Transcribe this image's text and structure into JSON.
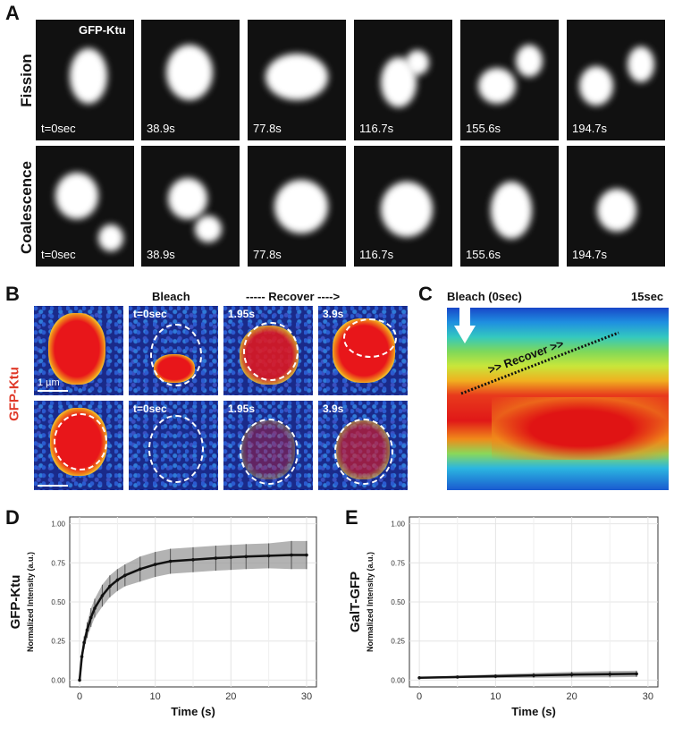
{
  "panel_a": {
    "label": "A",
    "tag": "GFP-Ktu",
    "rows": [
      {
        "name": "Fission",
        "times": [
          "t=0sec",
          "38.9s",
          "77.8s",
          "116.7s",
          "155.6s",
          "194.7s"
        ]
      },
      {
        "name": "Coalescence",
        "times": [
          "t=0sec",
          "38.9s",
          "77.8s",
          "116.7s",
          "155.6s",
          "194.7s"
        ]
      }
    ]
  },
  "panel_b": {
    "label": "B",
    "side_label": "GFP-Ktu",
    "col_headers": {
      "bleach": "Bleach",
      "recover": "----- Recover ---->"
    },
    "scale_label": "1 µm",
    "row1_times": [
      "t=0sec",
      "1.95s",
      "3.9s"
    ],
    "row2_times": [
      "t=0sec",
      "1.95s",
      "3.9s"
    ]
  },
  "panel_c": {
    "label": "C",
    "bleach": "Bleach (0sec)",
    "end_time": "15sec",
    "recover": ">> Recover >>"
  },
  "panel_d": {
    "label": "D"
  },
  "panel_e": {
    "label": "E"
  },
  "chart_data": [
    {
      "type": "line",
      "panel": "D",
      "ylabel_main": "GFP-Ktu",
      "ylabel_sub": "Normalized Intensity (a.u.)",
      "xlabel": "Time (s)",
      "xlim": [
        0,
        30
      ],
      "ylim": [
        0,
        1
      ],
      "xticks": [
        "0",
        "10",
        "20",
        "30"
      ],
      "yticks": [
        "0.00",
        "0.25",
        "0.50",
        "0.75",
        "1.00"
      ],
      "x": [
        0,
        0.3,
        0.6,
        1,
        1.5,
        2,
        3,
        4,
        5,
        6,
        8,
        10,
        12,
        15,
        18,
        20,
        22,
        25,
        28,
        30
      ],
      "y": [
        0.0,
        0.15,
        0.24,
        0.32,
        0.4,
        0.46,
        0.54,
        0.6,
        0.64,
        0.67,
        0.71,
        0.74,
        0.76,
        0.77,
        0.78,
        0.785,
        0.79,
        0.795,
        0.8,
        0.8
      ],
      "err": [
        0.0,
        0.03,
        0.04,
        0.05,
        0.06,
        0.06,
        0.07,
        0.07,
        0.07,
        0.07,
        0.08,
        0.08,
        0.08,
        0.08,
        0.08,
        0.08,
        0.08,
        0.08,
        0.09,
        0.09
      ],
      "grid": true
    },
    {
      "type": "line",
      "panel": "E",
      "ylabel_main": "GalT-GFP",
      "ylabel_sub": "Normalized Intensity (a.u.)",
      "xlabel": "Time (s)",
      "xlim": [
        0,
        30
      ],
      "ylim": [
        0,
        1
      ],
      "xticks": [
        "0",
        "10",
        "20",
        "30"
      ],
      "yticks": [
        "0.00",
        "0.25",
        "0.50",
        "0.75",
        "1.00"
      ],
      "x": [
        0,
        5,
        10,
        15,
        20,
        25,
        28.5
      ],
      "y": [
        0.015,
        0.02,
        0.025,
        0.03,
        0.035,
        0.038,
        0.04
      ],
      "err": [
        0.005,
        0.008,
        0.012,
        0.015,
        0.018,
        0.02,
        0.02
      ],
      "grid": true
    }
  ]
}
